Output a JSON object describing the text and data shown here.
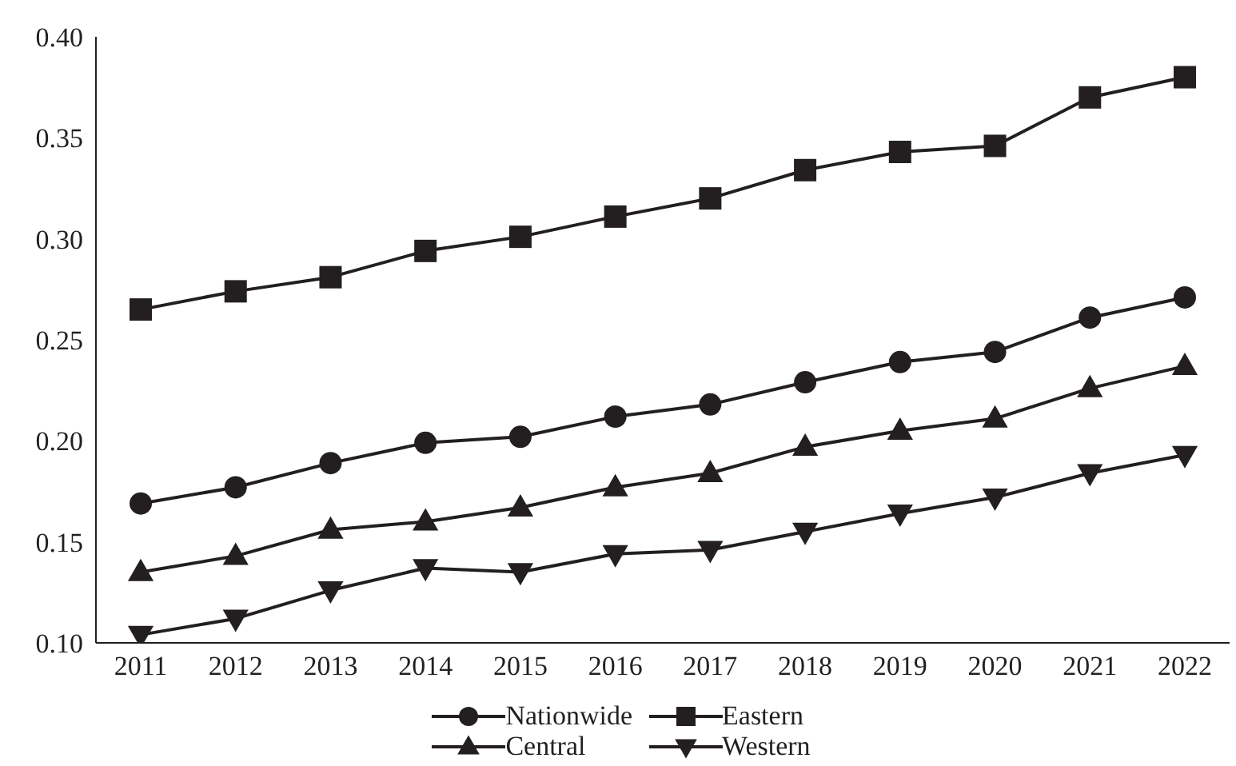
{
  "chart_data": {
    "type": "line",
    "categories": [
      "2011",
      "2012",
      "2013",
      "2014",
      "2015",
      "2016",
      "2017",
      "2018",
      "2019",
      "2020",
      "2021",
      "2022"
    ],
    "series": [
      {
        "name": "Nationwide",
        "color": "#231f20",
        "marker": "circle",
        "values": [
          0.169,
          0.177,
          0.189,
          0.199,
          0.202,
          0.212,
          0.218,
          0.229,
          0.239,
          0.244,
          0.261,
          0.271
        ]
      },
      {
        "name": "Eastern",
        "color": "#231f20",
        "marker": "square",
        "values": [
          0.265,
          0.274,
          0.281,
          0.294,
          0.301,
          0.311,
          0.32,
          0.334,
          0.343,
          0.346,
          0.37,
          0.38
        ]
      },
      {
        "name": "Central",
        "color": "#231f20",
        "marker": "triangle",
        "values": [
          0.135,
          0.143,
          0.156,
          0.16,
          0.167,
          0.177,
          0.184,
          0.197,
          0.205,
          0.211,
          0.226,
          0.237
        ]
      },
      {
        "name": "Western",
        "color": "#231f20",
        "marker": "triangle-down",
        "values": [
          0.104,
          0.112,
          0.126,
          0.137,
          0.135,
          0.144,
          0.146,
          0.155,
          0.164,
          0.172,
          0.184,
          0.193
        ]
      }
    ],
    "ylim": [
      0.1,
      0.4
    ],
    "yticks": [
      {
        "value": 0.1,
        "label": "0.10"
      },
      {
        "value": 0.15,
        "label": "0.15"
      },
      {
        "value": 0.2,
        "label": "0.20"
      },
      {
        "value": 0.25,
        "label": "0.25"
      },
      {
        "value": 0.3,
        "label": "0.30"
      },
      {
        "value": 0.35,
        "label": "0.35"
      },
      {
        "value": 0.4,
        "label": "0.40"
      }
    ],
    "grid": false,
    "legend": "bottom",
    "line_style": "solid"
  }
}
